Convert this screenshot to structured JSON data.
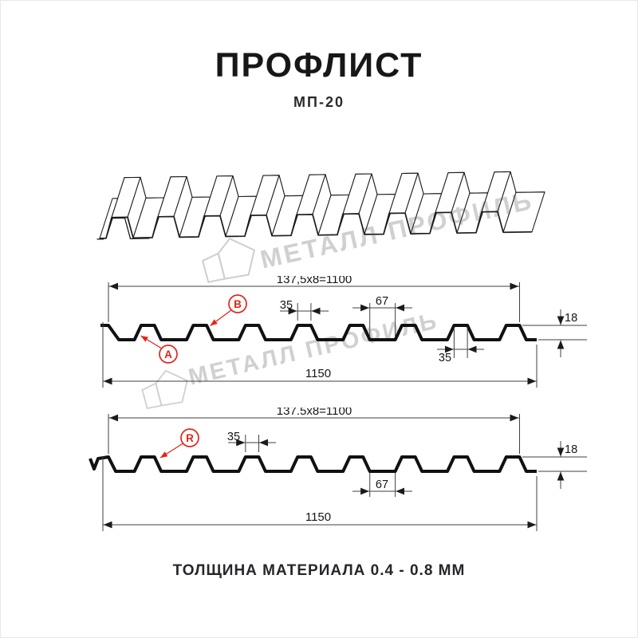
{
  "header": {
    "title": "ПРОФЛИСТ",
    "subtitle": "МП-20"
  },
  "watermark": {
    "text": "МЕТАЛЛ ПРОФИЛЬ"
  },
  "section_a": {
    "dim_pitch_total": "137,5x8=1100",
    "dim_rib_top_width": "35",
    "dim_valley_width": "67",
    "dim_height": "18",
    "dim_rib_top_width_2": "35",
    "dim_overall_width": "1150",
    "label_a": "A",
    "label_b": "B"
  },
  "section_r": {
    "dim_pitch_total": "137.5x8=1100",
    "dim_rib_top_width": "35",
    "dim_valley_width": "67",
    "dim_height": "18",
    "dim_overall_width": "1150",
    "label_r": "R"
  },
  "footer": {
    "text": "ТОЛЩИНА МАТЕРИАЛА 0.4 - 0.8 ММ"
  }
}
